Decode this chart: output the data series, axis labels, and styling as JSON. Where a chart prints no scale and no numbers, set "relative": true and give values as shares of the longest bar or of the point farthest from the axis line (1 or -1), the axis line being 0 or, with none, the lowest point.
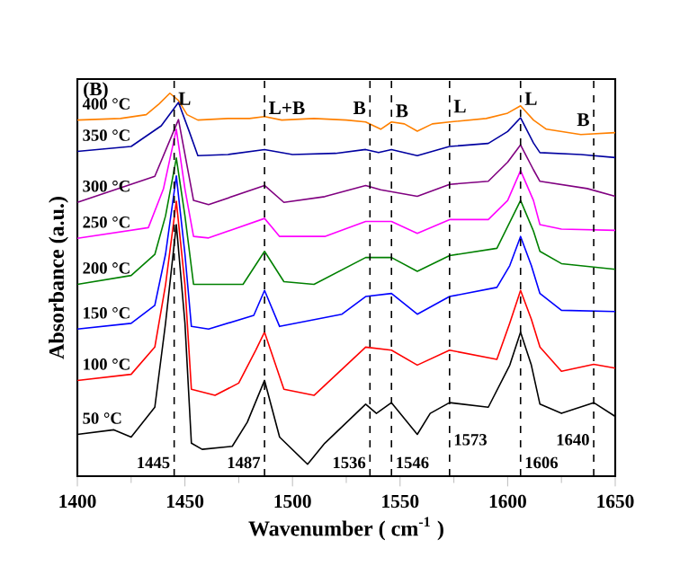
{
  "chart_data": {
    "type": "line",
    "relative": true,
    "marker": "none",
    "line_style": "solid",
    "xlabel": "Wavenumber ( cm$^{-1}$ )",
    "ylabel": "Absorbance (a.u.)",
    "xlim": [
      1400,
      1650
    ],
    "xticks": [
      1400,
      1450,
      1500,
      1550,
      1600,
      1650
    ],
    "series": [
      {
        "name": "400 °C",
        "color": "#ff8000",
        "x": [
          1400,
          1420,
          1432,
          1438,
          1443,
          1447,
          1451,
          1456,
          1470,
          1480,
          1487,
          1495,
          1510,
          1525,
          1534,
          1541,
          1546,
          1552,
          1558,
          1565,
          1573,
          1590,
          1600,
          1606,
          1612,
          1618,
          1634,
          1650
        ],
        "values": [
          0.93,
          0.934,
          0.944,
          0.972,
          1.0,
          0.981,
          0.944,
          0.93,
          0.934,
          0.934,
          0.939,
          0.93,
          0.934,
          0.93,
          0.925,
          0.906,
          0.925,
          0.92,
          0.901,
          0.92,
          0.925,
          0.934,
          0.948,
          0.967,
          0.93,
          0.906,
          0.892,
          0.897
        ]
      },
      {
        "name": "350 °C",
        "color": "#0000a0",
        "x": [
          1400,
          1425,
          1439,
          1447,
          1452,
          1456,
          1470,
          1487,
          1500,
          1520,
          1534,
          1540,
          1546,
          1558,
          1573,
          1591,
          1600,
          1606,
          1612,
          1615,
          1634,
          1650
        ],
        "values": [
          0.848,
          0.861,
          0.915,
          0.976,
          0.9,
          0.837,
          0.84,
          0.853,
          0.84,
          0.843,
          0.853,
          0.845,
          0.853,
          0.837,
          0.861,
          0.869,
          0.9,
          0.936,
          0.87,
          0.845,
          0.84,
          0.832
        ]
      },
      {
        "name": "300 °C",
        "color": "#800080",
        "x": [
          1400,
          1436,
          1447,
          1454,
          1461,
          1487,
          1496,
          1515,
          1534,
          1541,
          1558,
          1573,
          1591,
          1600,
          1606,
          1612,
          1615,
          1637,
          1650
        ],
        "values": [
          0.715,
          0.783,
          0.931,
          0.72,
          0.709,
          0.759,
          0.715,
          0.73,
          0.759,
          0.748,
          0.731,
          0.762,
          0.77,
          0.82,
          0.865,
          0.8,
          0.77,
          0.751,
          0.731
        ]
      },
      {
        "name": "250 °C",
        "color": "#ff00ff",
        "x": [
          1400,
          1433,
          1440,
          1446,
          1450,
          1454,
          1461,
          1487,
          1494,
          1515,
          1534,
          1546,
          1558,
          1573,
          1591,
          1600,
          1606,
          1612,
          1615,
          1625,
          1650
        ],
        "values": [
          0.621,
          0.649,
          0.75,
          0.906,
          0.75,
          0.626,
          0.622,
          0.673,
          0.626,
          0.626,
          0.665,
          0.665,
          0.634,
          0.67,
          0.67,
          0.72,
          0.798,
          0.72,
          0.657,
          0.645,
          0.642
        ]
      },
      {
        "name": "200 °C",
        "color": "#008000",
        "x": [
          1400,
          1425,
          1436,
          1441,
          1446,
          1450,
          1454,
          1477,
          1487,
          1496,
          1510,
          1534,
          1546,
          1558,
          1573,
          1595,
          1606,
          1612,
          1615,
          1625,
          1650
        ],
        "values": [
          0.501,
          0.524,
          0.579,
          0.68,
          0.831,
          0.68,
          0.501,
          0.501,
          0.587,
          0.508,
          0.501,
          0.571,
          0.571,
          0.535,
          0.576,
          0.595,
          0.72,
          0.64,
          0.587,
          0.555,
          0.54
        ]
      },
      {
        "name": "150 °C",
        "color": "#0000ff",
        "x": [
          1400,
          1425,
          1436,
          1441,
          1446,
          1450,
          1453,
          1461,
          1482,
          1487,
          1494,
          1523,
          1534,
          1546,
          1558,
          1573,
          1595,
          1601,
          1606,
          1611,
          1615,
          1625,
          1650
        ],
        "values": [
          0.384,
          0.399,
          0.446,
          0.58,
          0.784,
          0.58,
          0.391,
          0.384,
          0.42,
          0.485,
          0.391,
          0.423,
          0.469,
          0.477,
          0.423,
          0.469,
          0.493,
          0.55,
          0.626,
          0.55,
          0.477,
          0.433,
          0.43
        ]
      },
      {
        "name": "100 °C",
        "color": "#ff0000",
        "x": [
          1400,
          1425,
          1436,
          1441,
          1446,
          1450,
          1453,
          1464,
          1475,
          1483,
          1487,
          1496,
          1510,
          1534,
          1546,
          1558,
          1573,
          1595,
          1601,
          1606,
          1611,
          1615,
          1625,
          1640,
          1650
        ],
        "values": [
          0.25,
          0.266,
          0.337,
          0.5,
          0.718,
          0.5,
          0.227,
          0.211,
          0.243,
          0.33,
          0.376,
          0.227,
          0.211,
          0.337,
          0.329,
          0.29,
          0.329,
          0.305,
          0.4,
          0.485,
          0.41,
          0.337,
          0.274,
          0.292,
          0.282
        ]
      },
      {
        "name": "50 °C",
        "color": "#000000",
        "x": [
          1400,
          1417,
          1425,
          1436,
          1441,
          1446,
          1450,
          1453,
          1458,
          1472,
          1479,
          1487,
          1494,
          1507,
          1515,
          1534,
          1539,
          1546,
          1558,
          1564,
          1573,
          1591,
          1601,
          1606,
          1611,
          1615,
          1625,
          1640,
          1650
        ],
        "values": [
          0.109,
          0.121,
          0.102,
          0.18,
          0.4,
          0.657,
          0.4,
          0.086,
          0.07,
          0.078,
          0.141,
          0.25,
          0.102,
          0.031,
          0.086,
          0.188,
          0.164,
          0.192,
          0.109,
          0.164,
          0.192,
          0.18,
          0.29,
          0.376,
          0.29,
          0.188,
          0.164,
          0.192,
          0.156
        ]
      }
    ],
    "ref_lines": [
      {
        "axis": "x",
        "value": 1445,
        "label": "1445",
        "color": "#000000",
        "line_style": "dashed"
      },
      {
        "axis": "x",
        "value": 1487,
        "label": "1487",
        "color": "#000000",
        "line_style": "dashed"
      },
      {
        "axis": "x",
        "value": 1536,
        "label": "1536",
        "color": "#000000",
        "line_style": "dashed"
      },
      {
        "axis": "x",
        "value": 1546,
        "label": "1546",
        "color": "#000000",
        "line_style": "dashed"
      },
      {
        "axis": "x",
        "value": 1573,
        "label": "1573",
        "color": "#000000",
        "line_style": "dashed"
      },
      {
        "axis": "x",
        "value": 1606,
        "label": "1606",
        "color": "#000000",
        "line_style": "dashed"
      },
      {
        "axis": "x",
        "value": 1640,
        "label": "1640",
        "color": "#000000",
        "line_style": "dashed"
      }
    ],
    "annotations": [
      "(B)",
      {
        "text": "L",
        "x": 1445,
        "y": 0.986
      },
      {
        "text": "L+B",
        "x": 1487,
        "y": 0.962
      },
      {
        "text": "B",
        "x": 1536,
        "y": 0.962
      },
      {
        "text": "B",
        "x": 1546,
        "y": 0.954
      },
      {
        "text": "L",
        "x": 1573,
        "y": 0.966
      },
      {
        "text": "L",
        "x": 1606,
        "y": 0.986
      },
      {
        "text": "B",
        "x": 1640,
        "y": 0.931
      }
    ]
  }
}
